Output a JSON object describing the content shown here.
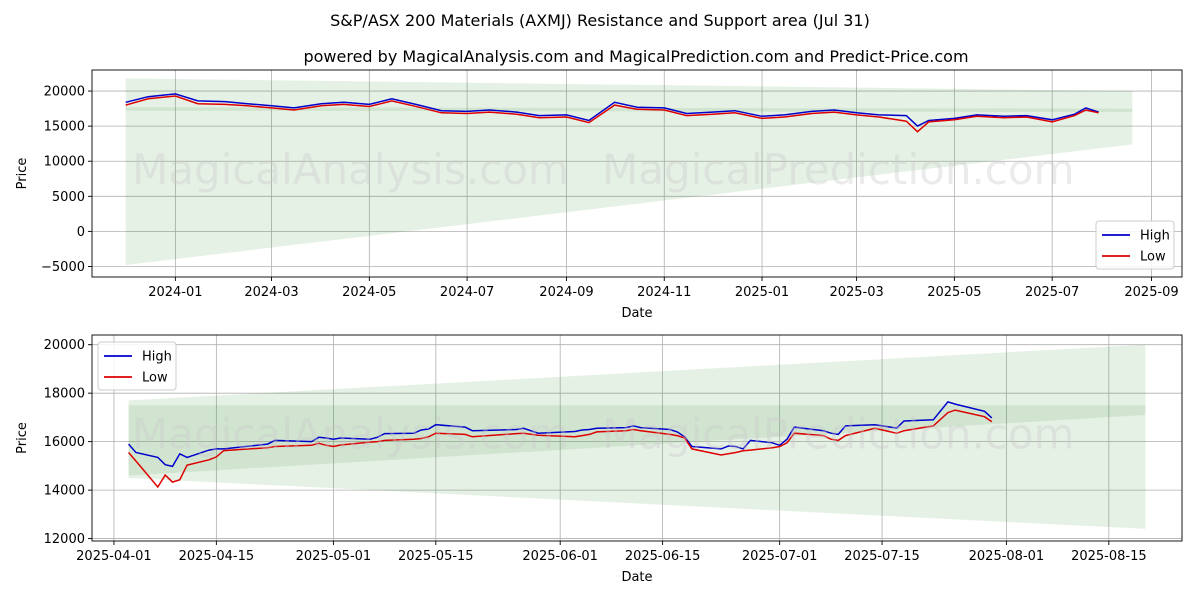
{
  "title": "S&P/ASX 200 Materials (AXMJ) Resistance and Support area (Jul 31)",
  "subtitle": "powered by MagicalAnalysis.com and MagicalPrediction.com and Predict-Price.com",
  "watermarks": [
    "MagicalAnalysis.com",
    "MagicalPrediction.com"
  ],
  "colors": {
    "high": "#0000cc",
    "low": "#dd0000",
    "band": "#2e8b2e"
  },
  "chart_data": [
    {
      "type": "line",
      "xlabel": "Date",
      "ylabel": "Price",
      "xlim": [
        "2023-11-10",
        "2025-09-20"
      ],
      "ylim": [
        -6500,
        23000
      ],
      "x_ticks": [
        "2024-01",
        "2024-03",
        "2024-05",
        "2024-07",
        "2024-09",
        "2024-11",
        "2025-01",
        "2025-03",
        "2025-05",
        "2025-07",
        "2025-09"
      ],
      "y_ticks": [
        -5000,
        0,
        5000,
        10000,
        15000,
        20000
      ],
      "y_tick_labels": [
        "−5000",
        "0",
        "5000",
        "10000",
        "15000",
        "20000"
      ],
      "grid": true,
      "legend_position": "lower-right",
      "bands": [
        {
          "x": [
            "2023-12-01",
            "2025-08-20"
          ],
          "upper": [
            21800,
            20000
          ],
          "lower": [
            -4800,
            12400
          ]
        },
        {
          "x": [
            "2023-12-01",
            "2025-08-20"
          ],
          "upper": [
            17700,
            17500
          ],
          "lower": [
            17200,
            17000
          ]
        }
      ],
      "series": [
        {
          "name": "High",
          "x": [
            "2023-12-01",
            "2023-12-15",
            "2024-01-01",
            "2024-01-15",
            "2024-02-01",
            "2024-02-15",
            "2024-03-01",
            "2024-03-15",
            "2024-04-01",
            "2024-04-15",
            "2024-05-01",
            "2024-05-15",
            "2024-06-01",
            "2024-06-15",
            "2024-07-01",
            "2024-07-15",
            "2024-08-01",
            "2024-08-15",
            "2024-09-01",
            "2024-09-15",
            "2024-10-01",
            "2024-10-15",
            "2024-11-01",
            "2024-11-15",
            "2024-12-01",
            "2024-12-15",
            "2025-01-01",
            "2025-01-15",
            "2025-02-01",
            "2025-02-15",
            "2025-03-01",
            "2025-03-15",
            "2025-04-01",
            "2025-04-08",
            "2025-04-15",
            "2025-05-01",
            "2025-05-15",
            "2025-06-01",
            "2025-06-15",
            "2025-07-01",
            "2025-07-15",
            "2025-07-22",
            "2025-07-30"
          ],
          "values": [
            18400,
            19200,
            19600,
            18600,
            18500,
            18200,
            17900,
            17600,
            18200,
            18400,
            18100,
            18900,
            18000,
            17200,
            17100,
            17300,
            17000,
            16500,
            16600,
            15800,
            18400,
            17700,
            17600,
            16800,
            17000,
            17200,
            16400,
            16600,
            17100,
            17300,
            16900,
            16600,
            16500,
            15000,
            15800,
            16100,
            16600,
            16400,
            16500,
            15900,
            16700,
            17600,
            17000
          ]
        },
        {
          "name": "Low",
          "x": [
            "2023-12-01",
            "2023-12-15",
            "2024-01-01",
            "2024-01-15",
            "2024-02-01",
            "2024-02-15",
            "2024-03-01",
            "2024-03-15",
            "2024-04-01",
            "2024-04-15",
            "2024-05-01",
            "2024-05-15",
            "2024-06-01",
            "2024-06-15",
            "2024-07-01",
            "2024-07-15",
            "2024-08-01",
            "2024-08-15",
            "2024-09-01",
            "2024-09-15",
            "2024-10-01",
            "2024-10-15",
            "2024-11-01",
            "2024-11-15",
            "2024-12-01",
            "2024-12-15",
            "2025-01-01",
            "2025-01-15",
            "2025-02-01",
            "2025-02-15",
            "2025-03-01",
            "2025-03-15",
            "2025-04-01",
            "2025-04-08",
            "2025-04-15",
            "2025-05-01",
            "2025-05-15",
            "2025-06-01",
            "2025-06-15",
            "2025-07-01",
            "2025-07-15",
            "2025-07-22",
            "2025-07-30"
          ],
          "values": [
            18000,
            18900,
            19300,
            18200,
            18100,
            17900,
            17600,
            17300,
            17900,
            18100,
            17800,
            18600,
            17700,
            16900,
            16800,
            17000,
            16700,
            16200,
            16300,
            15500,
            18000,
            17400,
            17300,
            16500,
            16700,
            16900,
            16100,
            16300,
            16800,
            17000,
            16600,
            16300,
            15700,
            14200,
            15600,
            15900,
            16400,
            16200,
            16300,
            15600,
            16500,
            17300,
            16900
          ]
        }
      ]
    },
    {
      "type": "line",
      "xlabel": "Date",
      "ylabel": "Price",
      "xlim": [
        "2025-03-29",
        "2025-08-25"
      ],
      "ylim": [
        11900,
        20400
      ],
      "x_ticks": [
        "2025-04-01",
        "2025-04-15",
        "2025-05-01",
        "2025-05-15",
        "2025-06-01",
        "2025-06-15",
        "2025-07-01",
        "2025-07-15",
        "2025-08-01",
        "2025-08-15"
      ],
      "y_ticks": [
        12000,
        14000,
        16000,
        18000,
        20000
      ],
      "grid": true,
      "legend_position": "upper-left",
      "bands": [
        {
          "x": [
            "2025-04-03",
            "2025-08-20"
          ],
          "upper": [
            17700,
            20000
          ],
          "lower": [
            14500,
            12400
          ]
        },
        {
          "x": [
            "2025-04-03",
            "2025-08-20"
          ],
          "upper": [
            17500,
            17500
          ],
          "lower": [
            14600,
            17100
          ]
        }
      ],
      "series": [
        {
          "name": "High",
          "x": [
            "2025-04-03",
            "2025-04-04",
            "2025-04-07",
            "2025-04-08",
            "2025-04-09",
            "2025-04-10",
            "2025-04-11",
            "2025-04-14",
            "2025-04-15",
            "2025-04-16",
            "2025-04-22",
            "2025-04-23",
            "2025-04-28",
            "2025-04-29",
            "2025-04-30",
            "2025-05-01",
            "2025-05-02",
            "2025-05-06",
            "2025-05-07",
            "2025-05-08",
            "2025-05-12",
            "2025-05-13",
            "2025-05-14",
            "2025-05-15",
            "2025-05-19",
            "2025-05-20",
            "2025-05-26",
            "2025-05-27",
            "2025-05-29",
            "2025-06-03",
            "2025-06-04",
            "2025-06-05",
            "2025-06-06",
            "2025-06-10",
            "2025-06-11",
            "2025-06-12",
            "2025-06-16",
            "2025-06-17",
            "2025-06-18",
            "2025-06-19",
            "2025-06-23",
            "2025-06-24",
            "2025-06-25",
            "2025-06-26",
            "2025-06-27",
            "2025-06-30",
            "2025-07-01",
            "2025-07-02",
            "2025-07-03",
            "2025-07-07",
            "2025-07-08",
            "2025-07-09",
            "2025-07-10",
            "2025-07-14",
            "2025-07-17",
            "2025-07-18",
            "2025-07-22",
            "2025-07-24",
            "2025-07-25",
            "2025-07-29",
            "2025-07-30"
          ],
          "values": [
            15900,
            15550,
            15350,
            15050,
            14980,
            15500,
            15350,
            15650,
            15700,
            15700,
            15900,
            16050,
            16000,
            16180,
            16150,
            16100,
            16150,
            16100,
            16180,
            16330,
            16350,
            16480,
            16520,
            16700,
            16600,
            16450,
            16500,
            16550,
            16350,
            16420,
            16480,
            16500,
            16550,
            16580,
            16650,
            16580,
            16500,
            16400,
            16200,
            15800,
            15700,
            15820,
            15800,
            15700,
            16050,
            15950,
            15850,
            16100,
            16600,
            16450,
            16350,
            16300,
            16650,
            16700,
            16560,
            16850,
            16900,
            17640,
            17550,
            17250,
            16980
          ]
        },
        {
          "name": "Low",
          "x": [
            "2025-04-03",
            "2025-04-04",
            "2025-04-07",
            "2025-04-08",
            "2025-04-09",
            "2025-04-10",
            "2025-04-11",
            "2025-04-14",
            "2025-04-15",
            "2025-04-16",
            "2025-04-22",
            "2025-04-23",
            "2025-04-28",
            "2025-04-29",
            "2025-04-30",
            "2025-05-01",
            "2025-05-02",
            "2025-05-06",
            "2025-05-07",
            "2025-05-08",
            "2025-05-12",
            "2025-05-13",
            "2025-05-14",
            "2025-05-15",
            "2025-05-19",
            "2025-05-20",
            "2025-05-26",
            "2025-05-27",
            "2025-05-29",
            "2025-06-03",
            "2025-06-04",
            "2025-06-05",
            "2025-06-06",
            "2025-06-10",
            "2025-06-11",
            "2025-06-12",
            "2025-06-16",
            "2025-06-17",
            "2025-06-18",
            "2025-06-19",
            "2025-06-23",
            "2025-06-24",
            "2025-06-25",
            "2025-06-26",
            "2025-06-27",
            "2025-06-30",
            "2025-07-01",
            "2025-07-02",
            "2025-07-03",
            "2025-07-07",
            "2025-07-08",
            "2025-07-09",
            "2025-07-10",
            "2025-07-14",
            "2025-07-17",
            "2025-07-18",
            "2025-07-22",
            "2025-07-24",
            "2025-07-25",
            "2025-07-29",
            "2025-07-30"
          ],
          "values": [
            15550,
            15200,
            14130,
            14620,
            14330,
            14430,
            15030,
            15250,
            15370,
            15630,
            15750,
            15800,
            15850,
            15930,
            15850,
            15800,
            15860,
            15980,
            16000,
            16050,
            16100,
            16130,
            16200,
            16350,
            16300,
            16200,
            16330,
            16350,
            16260,
            16200,
            16250,
            16300,
            16400,
            16450,
            16500,
            16450,
            16300,
            16250,
            16150,
            15700,
            15450,
            15500,
            15550,
            15620,
            15650,
            15750,
            15800,
            15950,
            16350,
            16250,
            16100,
            16050,
            16250,
            16550,
            16350,
            16450,
            16650,
            17200,
            17300,
            17030,
            16820
          ]
        }
      ]
    }
  ]
}
